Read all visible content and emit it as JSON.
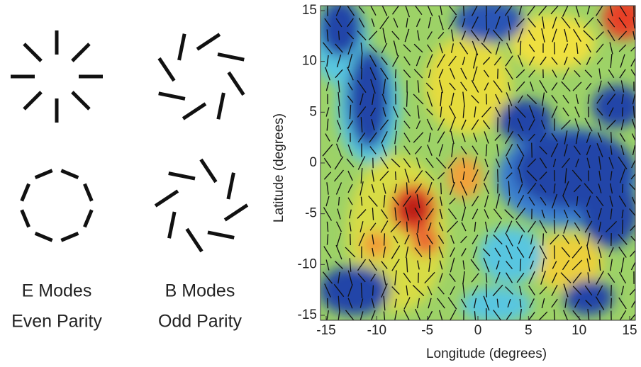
{
  "chart_data": {
    "type": "heatmap",
    "xlabel": "Longitude (degrees)",
    "ylabel": "Latitude (degrees)",
    "xlim": [
      -15,
      15
    ],
    "ylim": [
      -15,
      15
    ],
    "xticks": [
      -15,
      -10,
      -5,
      0,
      5,
      10,
      15
    ],
    "yticks": [
      -15,
      -10,
      -5,
      0,
      5,
      10,
      15
    ]
  },
  "diagrams": [
    {
      "lines": [
        "E Modes",
        "Even Parity"
      ]
    },
    {
      "lines": [
        "B Modes",
        "Odd Parity"
      ]
    }
  ]
}
